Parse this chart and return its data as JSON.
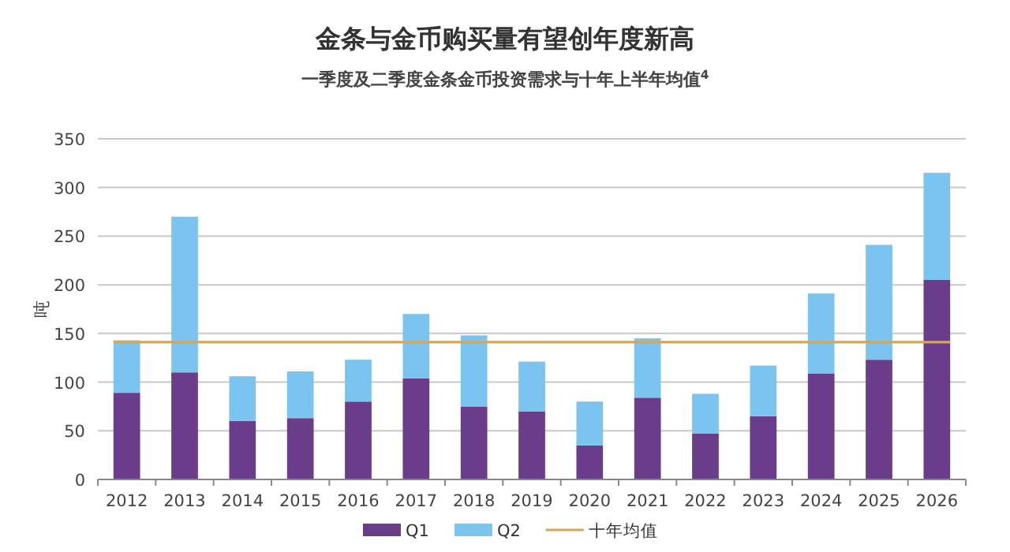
{
  "chart_data": {
    "type": "bar",
    "title": "金条与金币购买量有望创年度新高",
    "subtitle": "一季度及二季度金条金币投资需求与十年上半年均值$^{4}$",
    "ylabel": "吨",
    "categories": [
      "2012",
      "2013",
      "2014",
      "2015",
      "2016",
      "2017",
      "2018",
      "2019",
      "2020",
      "2021",
      "2022",
      "2023",
      "2024",
      "2025",
      "2026"
    ],
    "series": [
      {
        "name": "Q1",
        "color": "#6a3d8a",
        "values": [
          89,
          110,
          60,
          63,
          80,
          104,
          75,
          70,
          35,
          84,
          47,
          65,
          109,
          123,
          205
        ]
      },
      {
        "name": "Q2",
        "color": "#7cc4f0",
        "values": [
          54,
          160,
          46,
          48,
          43,
          66,
          73,
          51,
          45,
          61,
          41,
          52,
          82,
          118,
          110
        ]
      }
    ],
    "stacked": true,
    "ylim": [
      0,
      350
    ],
    "yticks": [
      0,
      50,
      100,
      150,
      200,
      250,
      300,
      350
    ],
    "grid": "y",
    "legend": "bottom",
    "ref_lines": [
      {
        "axis": "y",
        "value": 141,
        "label": "十年均值",
        "color": "#d4a55a"
      }
    ]
  }
}
